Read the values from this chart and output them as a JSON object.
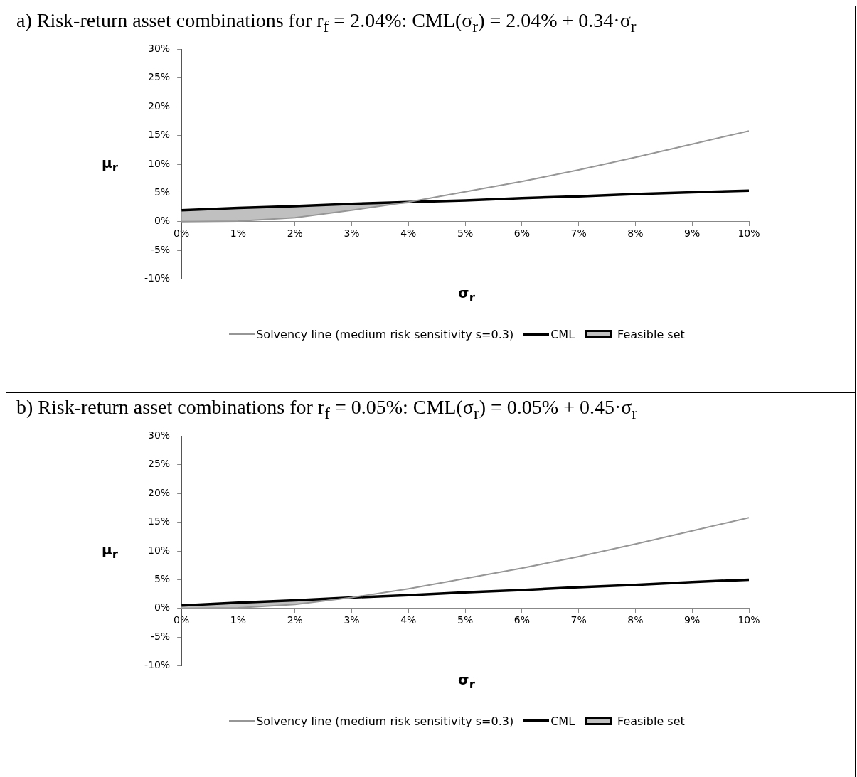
{
  "chart_data": [
    {
      "type": "line",
      "title": "a) Risk-return asset combinations for r$_{f}$ = 2.04%: CML(σ$_{r}$) = 2.04% + 0.34·σ$_{r}$",
      "xlabel": "σ$_{r}$",
      "ylabel": "μ$_{r}$",
      "xlim": [
        0,
        10
      ],
      "xticks": [
        {
          "value": 0,
          "label": "0%"
        },
        {
          "value": 1,
          "label": "1%"
        },
        {
          "value": 2,
          "label": "2%"
        },
        {
          "value": 3,
          "label": "3%"
        },
        {
          "value": 4,
          "label": "4%"
        },
        {
          "value": 5,
          "label": "5%"
        },
        {
          "value": 6,
          "label": "6%"
        },
        {
          "value": 7,
          "label": "7%"
        },
        {
          "value": 8,
          "label": "8%"
        },
        {
          "value": 9,
          "label": "9%"
        },
        {
          "value": 10,
          "label": "10%"
        }
      ],
      "ylim": [
        -10,
        30
      ],
      "yticks": [
        {
          "value": -10,
          "label": "-10%"
        },
        {
          "value": -5,
          "label": "-5%"
        },
        {
          "value": 0,
          "label": "0%"
        },
        {
          "value": 5,
          "label": "5%"
        },
        {
          "value": 10,
          "label": "10%"
        },
        {
          "value": 15,
          "label": "15%"
        },
        {
          "value": 20,
          "label": "20%"
        },
        {
          "value": 25,
          "label": "25%"
        },
        {
          "value": 30,
          "label": "30%"
        }
      ],
      "grid": false,
      "legend": "bottom",
      "marker": "none",
      "series": [
        {
          "name": "Feasible set",
          "type": "area",
          "color": "#c0c0c0",
          "x": [
            0,
            1,
            2,
            3,
            4
          ],
          "values": [
            2.0,
            2.4,
            2.7,
            3.1,
            3.4
          ]
        },
        {
          "name": "Solvency line (medium risk sensitivity s=0.3)",
          "type": "line",
          "color": "#969696",
          "x": [
            0,
            1,
            2,
            3,
            4,
            5,
            6,
            7,
            8,
            9,
            10
          ],
          "values": [
            0,
            0.1,
            0.7,
            2.0,
            3.4,
            5.2,
            7.0,
            9.0,
            11.2,
            13.5,
            15.8
          ]
        },
        {
          "name": "CML",
          "type": "line",
          "color": "#000000",
          "x": [
            0,
            1,
            2,
            3,
            4,
            5,
            6,
            7,
            8,
            9,
            10
          ],
          "values": [
            2.0,
            2.4,
            2.7,
            3.1,
            3.4,
            3.7,
            4.1,
            4.4,
            4.8,
            5.1,
            5.4
          ]
        }
      ]
    },
    {
      "type": "line",
      "title": "b) Risk-return asset combinations for r$_{f}$ = 0.05%: CML(σ$_{r}$) = 0.05% + 0.45·σ$_{r}$",
      "xlabel": "σ$_{r}$",
      "ylabel": "μ$_{r}$",
      "xlim": [
        0,
        10
      ],
      "xticks": [
        {
          "value": 0,
          "label": "0%"
        },
        {
          "value": 1,
          "label": "1%"
        },
        {
          "value": 2,
          "label": "2%"
        },
        {
          "value": 3,
          "label": "3%"
        },
        {
          "value": 4,
          "label": "4%"
        },
        {
          "value": 5,
          "label": "5%"
        },
        {
          "value": 6,
          "label": "6%"
        },
        {
          "value": 7,
          "label": "7%"
        },
        {
          "value": 8,
          "label": "8%"
        },
        {
          "value": 9,
          "label": "9%"
        },
        {
          "value": 10,
          "label": "10%"
        }
      ],
      "ylim": [
        -10,
        30
      ],
      "yticks": [
        {
          "value": -10,
          "label": "-10%"
        },
        {
          "value": -5,
          "label": "-5%"
        },
        {
          "value": 0,
          "label": "0%"
        },
        {
          "value": 5,
          "label": "5%"
        },
        {
          "value": 10,
          "label": "10%"
        },
        {
          "value": 15,
          "label": "15%"
        },
        {
          "value": 20,
          "label": "20%"
        },
        {
          "value": 25,
          "label": "25%"
        },
        {
          "value": 30,
          "label": "30%"
        }
      ],
      "grid": false,
      "legend": "bottom",
      "marker": "none",
      "series": [
        {
          "name": "Feasible set",
          "type": "area",
          "color": "#c0c0c0",
          "x": [
            0,
            1,
            2,
            3
          ],
          "values": [
            0.5,
            1.0,
            1.4,
            1.9
          ]
        },
        {
          "name": "Solvency line (medium risk sensitivity s=0.3)",
          "type": "line",
          "color": "#969696",
          "x": [
            0,
            1,
            2,
            3,
            4,
            5,
            6,
            7,
            8,
            9,
            10
          ],
          "values": [
            0,
            0.1,
            0.7,
            1.9,
            3.4,
            5.2,
            7.0,
            9.0,
            11.2,
            13.5,
            15.8
          ]
        },
        {
          "name": "CML",
          "type": "line",
          "color": "#000000",
          "x": [
            0,
            1,
            2,
            3,
            4,
            5,
            6,
            7,
            8,
            9,
            10
          ],
          "values": [
            0.5,
            1.0,
            1.4,
            1.9,
            2.3,
            2.8,
            3.2,
            3.7,
            4.1,
            4.6,
            5.0
          ]
        }
      ]
    }
  ]
}
